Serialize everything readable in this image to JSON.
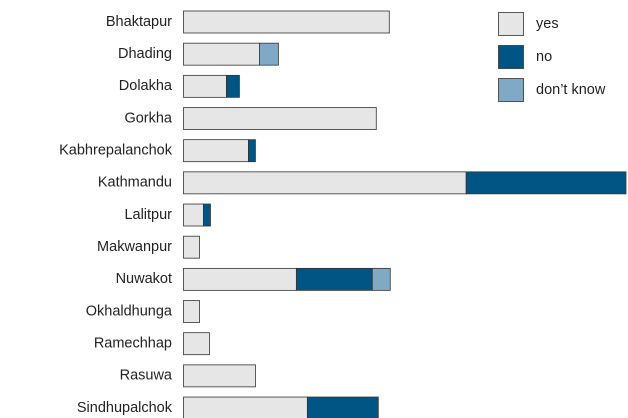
{
  "chart_data": {
    "type": "stacked-bar",
    "orientation": "horizontal",
    "categories": [
      "Bhaktapur",
      "Dhading",
      "Dolakha",
      "Gorkha",
      "Kabhrepalanchok",
      "Kathmandu",
      "Lalitpur",
      "Makwanpur",
      "Nuwakot",
      "Okhaldhunga",
      "Ramechhap",
      "Rasuwa",
      "Sindhupalchok"
    ],
    "series": [
      {
        "name": "yes",
        "color": "#e6e6e6",
        "values": [
          206,
          76,
          43,
          193,
          65,
          283,
          20,
          16,
          113,
          16,
          26,
          72,
          124
        ]
      },
      {
        "name": "no",
        "color": "#005585",
        "values": [
          0,
          0,
          13,
          0,
          7,
          160,
          7,
          0,
          76,
          0,
          0,
          0,
          71
        ]
      },
      {
        "name": "don’t know",
        "color": "#7fa9c4",
        "values": [
          0,
          19,
          0,
          0,
          0,
          0,
          0,
          0,
          18,
          0,
          0,
          0,
          0
        ]
      }
    ],
    "xlim": [
      0,
      443
    ],
    "legend": "top-right"
  }
}
